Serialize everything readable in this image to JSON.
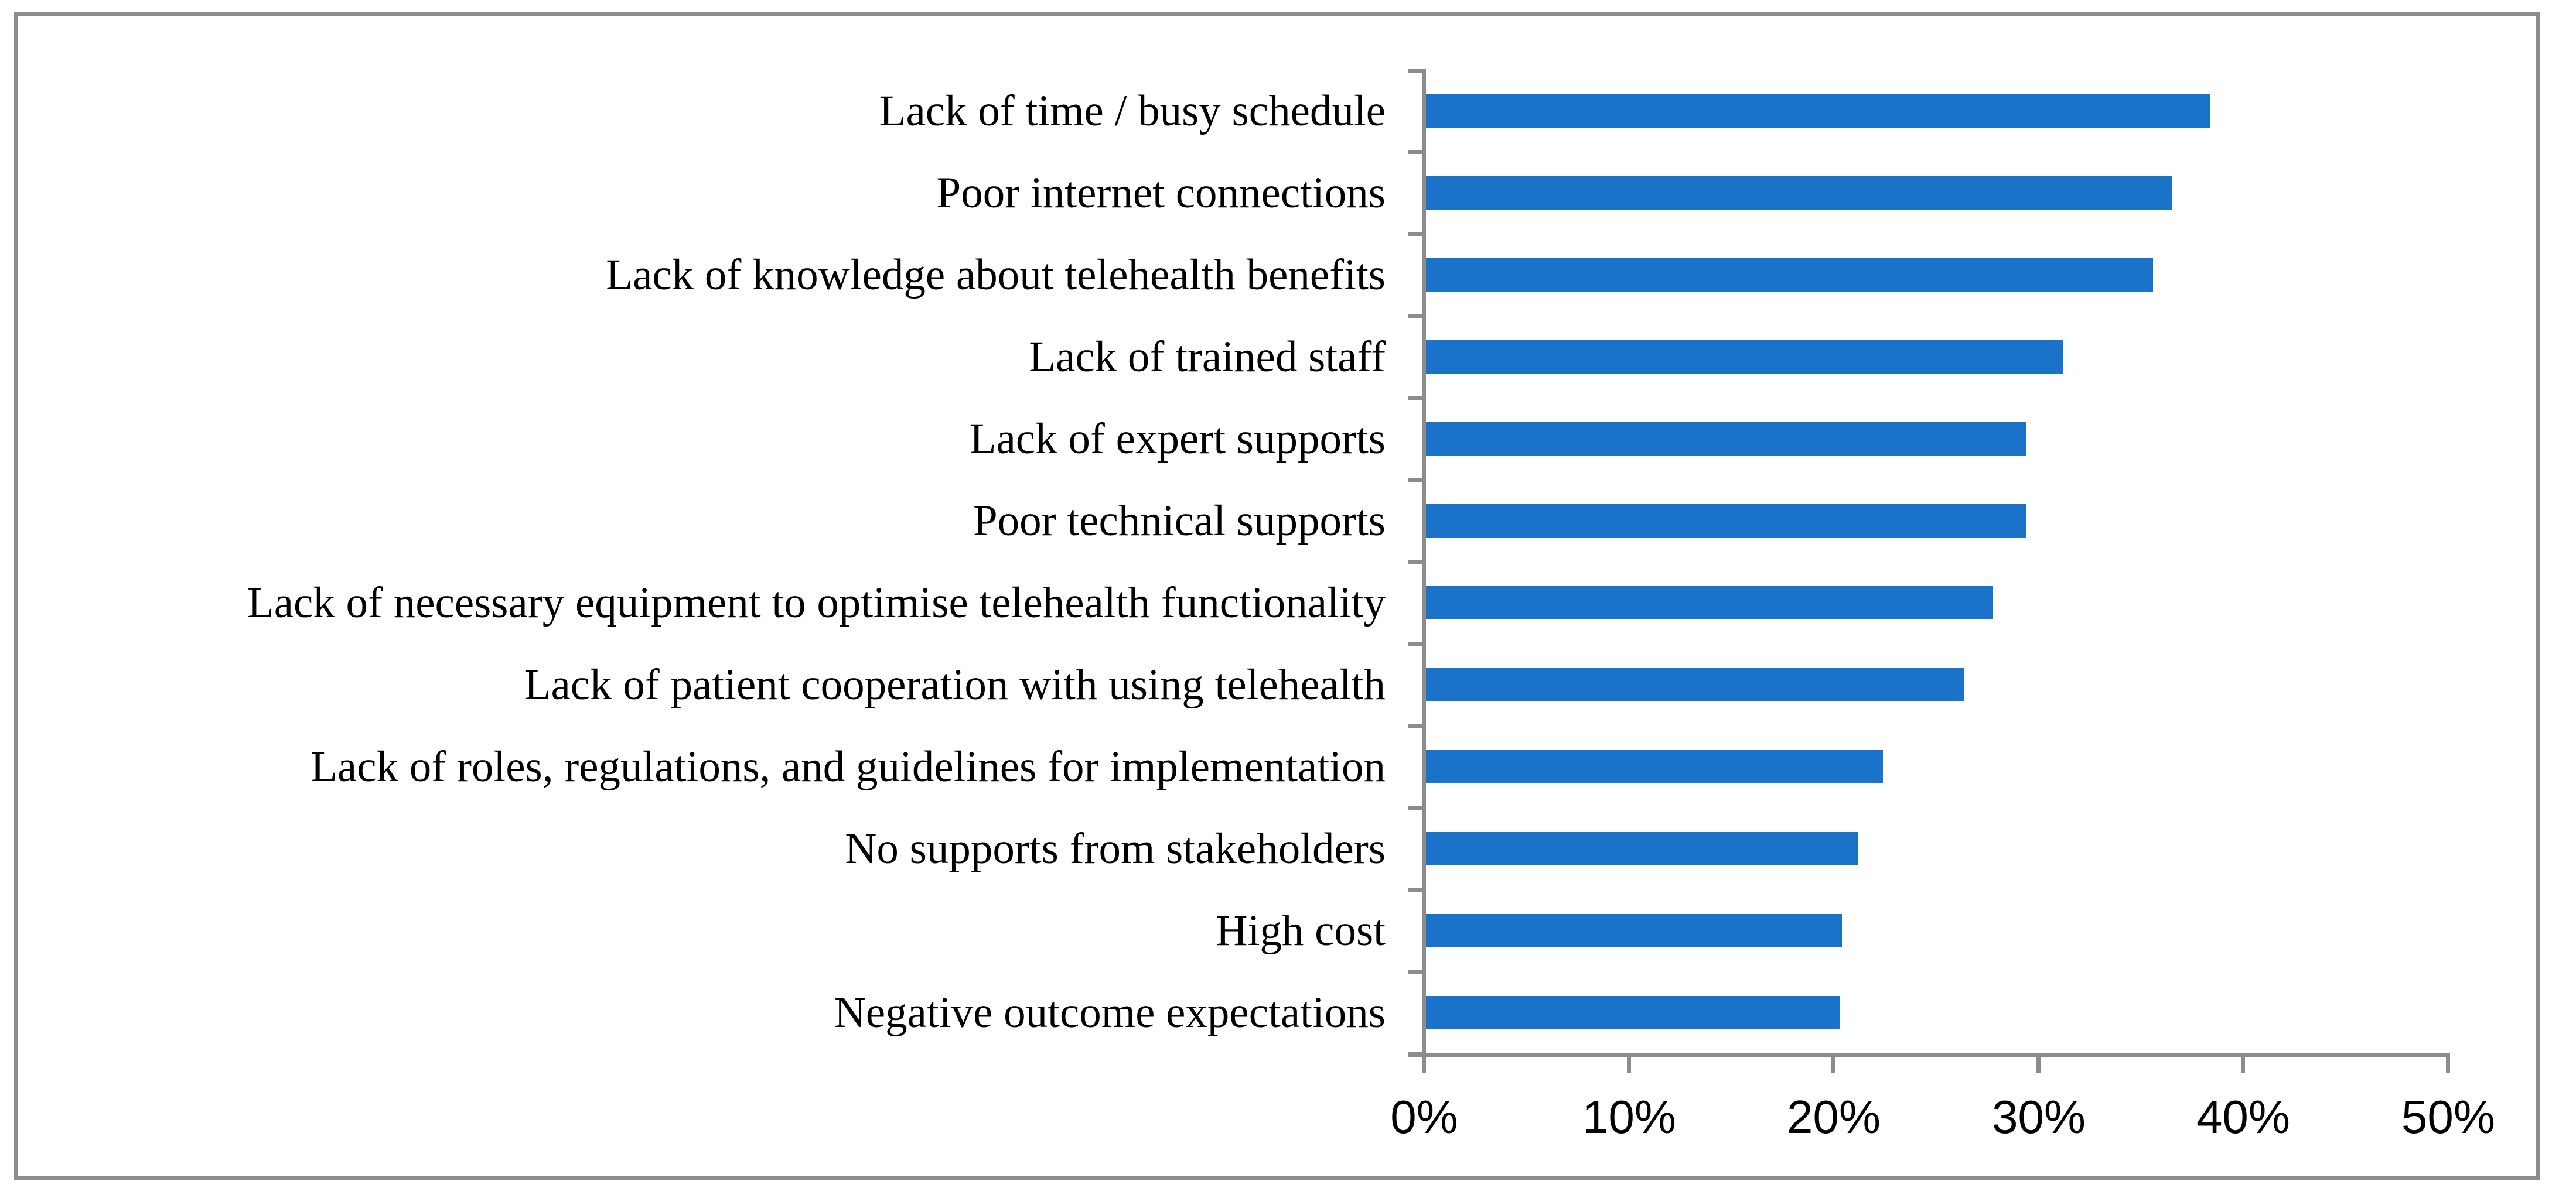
{
  "chart_data": {
    "type": "bar",
    "orientation": "horizontal",
    "title": "",
    "xlabel": "",
    "ylabel": "",
    "grid": false,
    "legend": "none",
    "unit": "percent",
    "xlim": [
      0,
      50
    ],
    "x_tick_labels": [
      "0%",
      "10%",
      "20%",
      "30%",
      "40%",
      "50%"
    ],
    "x_tick_values": [
      0,
      10,
      20,
      30,
      40,
      50
    ],
    "categories": [
      "Lack of time / busy schedule",
      "Poor internet connections",
      "Lack of knowledge about telehealth benefits",
      "Lack of trained staff",
      "Lack of expert supports",
      "Poor technical supports",
      "Lack of necessary equipment to optimise telehealth functionality",
      "Lack of patient cooperation with using telehealth",
      "Lack of roles, regulations, and guidelines for implementation",
      "No supports from stakeholders",
      "High cost",
      "Negative outcome expectations"
    ],
    "values": [
      38.3,
      36.4,
      35.5,
      31.1,
      29.3,
      29.3,
      27.7,
      26.3,
      22.3,
      21.1,
      20.3,
      20.2
    ],
    "bar_color": "#1A73C8",
    "axis_color": "#8C8C8C",
    "frame_border_color": "#8C8C8C",
    "text_color": "#000000",
    "background_color": "#FFFFFF"
  }
}
